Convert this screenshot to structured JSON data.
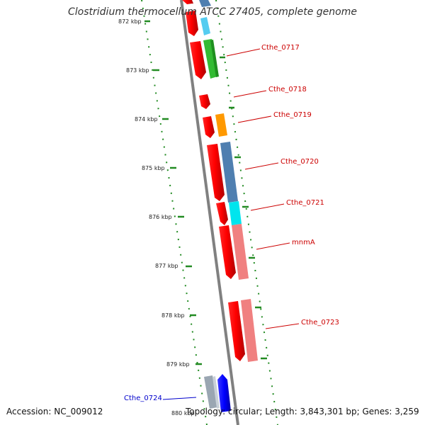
{
  "title": "Clostridium thermocellum ATCC 27405, complete genome",
  "accession_text": "Accession: NC_009012",
  "summary_text": "Topology: circular; Length: 3,843,301 bp; Genes: 3,259",
  "kbp_ticks": [
    "872 kbp",
    "873 kbp",
    "874 kbp",
    "875 kbp",
    "876 kbp",
    "877 kbp",
    "878 kbp",
    "879 kbp",
    "880 kbp"
  ],
  "genes": [
    {
      "label": "Cthe_0717",
      "strand": "forward",
      "color": "#cc0000"
    },
    {
      "label": "Cthe_0718",
      "strand": "forward",
      "color": "#cc0000"
    },
    {
      "label": "Cthe_0719",
      "strand": "forward",
      "color": "#cc0000"
    },
    {
      "label": "Cthe_0720",
      "strand": "forward",
      "color": "#cc0000"
    },
    {
      "label": "Cthe_0721",
      "strand": "forward",
      "color": "#cc0000"
    },
    {
      "label": "mnmA",
      "strand": "forward",
      "color": "#cc0000"
    },
    {
      "label": "Cthe_0723",
      "strand": "forward",
      "color": "#cc0000"
    },
    {
      "label": "Cthe_0724",
      "strand": "reverse",
      "color": "#0000cc"
    }
  ],
  "colors": {
    "cds": "#ff0000",
    "forward_label": "#cc0000",
    "reverse_label": "#0000cc",
    "backbone": "#808080",
    "tick_dots": "#228b22",
    "cog_green": "#33bb33",
    "cog_orange": "#ff9900",
    "cog_steelblue": "#4f7fb0",
    "cog_cyan": "#00e5ee",
    "cog_pink": "#f08080",
    "cog_skyblue": "#55ccf0",
    "cog_gray": "#9aa6b2",
    "reverse_cds": "#0000ff"
  }
}
